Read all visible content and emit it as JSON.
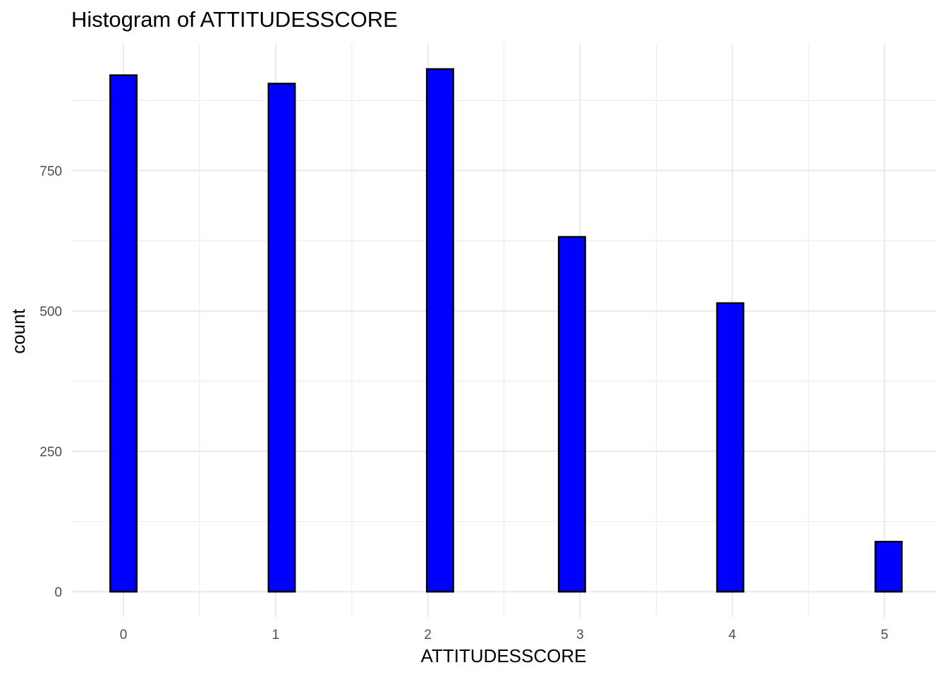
{
  "chart_data": {
    "type": "bar",
    "title": "Histogram of ATTITUDESSCORE",
    "xlabel": "ATTITUDESSCORE",
    "ylabel": "count",
    "xlim": [
      -0.1,
      5.1
    ],
    "ylim": [
      0,
      930
    ],
    "x_ticks": [
      "0",
      "1",
      "2",
      "3",
      "4",
      "5"
    ],
    "y_ticks": [
      "0",
      "250",
      "500",
      "750"
    ],
    "grid": true,
    "bin_width": 0.1733,
    "bins": [
      {
        "start": -0.0867,
        "end": 0.0867,
        "count": 920
      },
      {
        "start": 0.0867,
        "end": 0.26,
        "count": 0
      },
      {
        "start": 0.26,
        "end": 0.4333,
        "count": 0
      },
      {
        "start": 0.4333,
        "end": 0.6067,
        "count": 0
      },
      {
        "start": 0.6067,
        "end": 0.78,
        "count": 0
      },
      {
        "start": 0.78,
        "end": 0.9533,
        "count": 0
      },
      {
        "start": 0.9533,
        "end": 1.1267,
        "count": 905
      },
      {
        "start": 1.1267,
        "end": 1.3,
        "count": 0
      },
      {
        "start": 1.3,
        "end": 1.4733,
        "count": 0
      },
      {
        "start": 1.4733,
        "end": 1.6467,
        "count": 0
      },
      {
        "start": 1.6467,
        "end": 1.82,
        "count": 0
      },
      {
        "start": 1.82,
        "end": 1.9933,
        "count": 0
      },
      {
        "start": 1.9933,
        "end": 2.1667,
        "count": 931
      },
      {
        "start": 2.1667,
        "end": 2.34,
        "count": 0
      },
      {
        "start": 2.34,
        "end": 2.5133,
        "count": 0
      },
      {
        "start": 2.5133,
        "end": 2.6867,
        "count": 0
      },
      {
        "start": 2.6867,
        "end": 2.86,
        "count": 0
      },
      {
        "start": 2.86,
        "end": 3.0333,
        "count": 632
      },
      {
        "start": 3.0333,
        "end": 3.2067,
        "count": 0
      },
      {
        "start": 3.2067,
        "end": 3.38,
        "count": 0
      },
      {
        "start": 3.38,
        "end": 3.5533,
        "count": 0
      },
      {
        "start": 3.5533,
        "end": 3.7267,
        "count": 0
      },
      {
        "start": 3.7267,
        "end": 3.9,
        "count": 0
      },
      {
        "start": 3.9,
        "end": 4.0733,
        "count": 514
      },
      {
        "start": 4.0733,
        "end": 4.2467,
        "count": 0
      },
      {
        "start": 4.2467,
        "end": 4.42,
        "count": 0
      },
      {
        "start": 4.42,
        "end": 4.5933,
        "count": 0
      },
      {
        "start": 4.5933,
        "end": 4.7667,
        "count": 0
      },
      {
        "start": 4.7667,
        "end": 4.94,
        "count": 0
      },
      {
        "start": 4.94,
        "end": 5.1133,
        "count": 89
      }
    ],
    "fill_color": "#0000ff",
    "outline_color": "#000000",
    "grid_color": "#ebebeb"
  }
}
